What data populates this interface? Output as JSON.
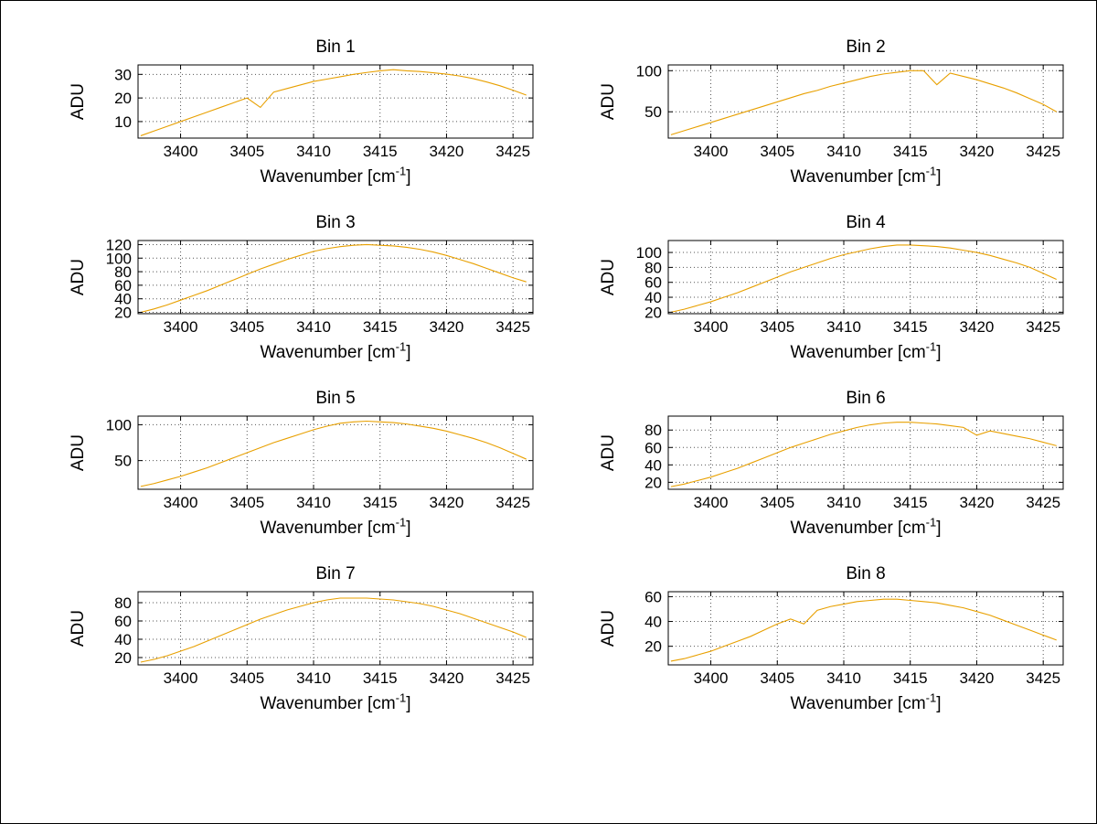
{
  "figure": {
    "background": "#ffffff",
    "border_color": "#000000",
    "grid_color": "#555555",
    "axes_color": "#000000"
  },
  "axis": {
    "x_label_prefix": "Wavenumber [cm",
    "x_label_sup": "-1",
    "x_label_suffix": "]",
    "y_label": "ADU"
  },
  "chart_data": {
    "type": "line",
    "xlabel": "Wavenumber [cm⁻¹]",
    "ylabel": "ADU",
    "line_color": "#E8A000",
    "grid": true,
    "legend": "none",
    "xlim": [
      3396.8,
      3426.5
    ],
    "x_ticks": [
      3400,
      3405,
      3410,
      3415,
      3420,
      3425
    ],
    "x": [
      3397,
      3398,
      3399,
      3400,
      3401,
      3402,
      3403,
      3404,
      3405,
      3406,
      3407,
      3408,
      3409,
      3410,
      3411,
      3412,
      3413,
      3414,
      3415,
      3416,
      3417,
      3418,
      3419,
      3420,
      3421,
      3422,
      3423,
      3424,
      3425,
      3426
    ],
    "subplots": [
      {
        "title": "Bin 1",
        "y_ticks": [
          10,
          20,
          30
        ],
        "ylim": [
          3,
          34
        ],
        "values": [
          4,
          6,
          8,
          10,
          12,
          14,
          16,
          18,
          20,
          16,
          22.5,
          24,
          25.5,
          27,
          28,
          29,
          30,
          30.8,
          31.5,
          32,
          31.5,
          31.2,
          30.7,
          30.1,
          29.3,
          28.2,
          26.8,
          25.2,
          23.3,
          21.2
        ]
      },
      {
        "title": "Bin 2",
        "y_ticks": [
          50,
          100
        ],
        "ylim": [
          18,
          107
        ],
        "values": [
          22,
          27,
          32,
          37,
          42,
          47,
          52,
          57,
          62,
          67,
          72,
          76,
          81,
          85,
          89,
          93,
          96,
          98,
          100,
          100,
          83,
          97,
          93,
          89,
          84,
          79,
          73,
          66,
          59,
          50
        ]
      },
      {
        "title": "Bin 3",
        "y_ticks": [
          20,
          40,
          60,
          80,
          100,
          120
        ],
        "ylim": [
          18,
          126
        ],
        "values": [
          20,
          25,
          31,
          38,
          45,
          52,
          60,
          68,
          76,
          84,
          91,
          98,
          104,
          110,
          114,
          117,
          119,
          120,
          119,
          118,
          116,
          113,
          109,
          104,
          98,
          92,
          85,
          78,
          71,
          65
        ]
      },
      {
        "title": "Bin 4",
        "y_ticks": [
          20,
          40,
          60,
          80,
          100
        ],
        "ylim": [
          18,
          116
        ],
        "values": [
          20,
          24,
          29,
          34,
          40,
          46,
          53,
          60,
          67,
          74,
          80,
          86,
          92,
          97,
          101,
          105,
          108,
          110,
          110,
          109,
          108,
          106,
          103,
          100,
          96,
          91,
          86,
          80,
          72,
          64
        ]
      },
      {
        "title": "Bin 5",
        "y_ticks": [
          50,
          100
        ],
        "ylim": [
          10,
          112
        ],
        "values": [
          14,
          18,
          23,
          28,
          34,
          40,
          47,
          54,
          61,
          68,
          75,
          81,
          87,
          93,
          98,
          102,
          104,
          105,
          104,
          103,
          101,
          98,
          95,
          91,
          86,
          81,
          75,
          68,
          60,
          52
        ]
      },
      {
        "title": "Bin 6",
        "y_ticks": [
          20,
          40,
          60,
          80
        ],
        "ylim": [
          12,
          96
        ],
        "values": [
          15,
          18,
          22,
          26,
          31,
          36,
          42,
          48,
          54,
          60,
          65,
          70,
          75,
          79,
          83,
          86,
          88,
          89,
          89,
          88,
          87,
          85,
          83,
          74,
          79,
          76,
          73,
          70,
          66,
          62
        ]
      },
      {
        "title": "Bin 7",
        "y_ticks": [
          20,
          40,
          60,
          80
        ],
        "ylim": [
          12,
          92
        ],
        "values": [
          15,
          18,
          22,
          27,
          32,
          38,
          44,
          50,
          56,
          62,
          67,
          72,
          76,
          80,
          83,
          85,
          85,
          85,
          84,
          83,
          81,
          79,
          76,
          72,
          68,
          63,
          58,
          53,
          48,
          42
        ]
      },
      {
        "title": "Bin 8",
        "y_ticks": [
          20,
          40,
          60
        ],
        "ylim": [
          5,
          64
        ],
        "values": [
          8,
          10,
          13,
          16,
          20,
          24,
          28,
          33,
          38,
          42,
          38,
          49,
          52,
          54,
          56,
          57,
          58,
          58,
          57,
          56,
          55,
          53,
          51,
          48,
          45,
          41,
          37,
          33,
          29,
          25
        ]
      }
    ]
  }
}
